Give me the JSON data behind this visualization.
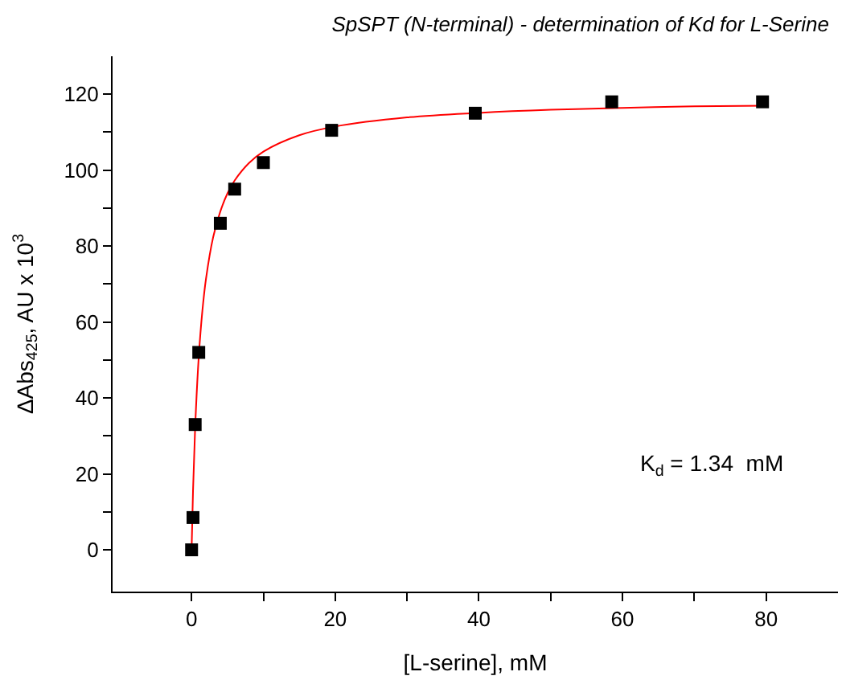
{
  "chart_data": {
    "type": "scatter",
    "title": "SpSPT (N-terminal) - determination of Kd for L-Serine",
    "xlabel": "[L-serine], mM",
    "ylabel": "ΔAbs$_{425}$, AU x 10$^{3}$",
    "series": [
      {
        "type": "line",
        "color": "#ff0000",
        "marker": "none",
        "line_style": "solid",
        "x": [
          0,
          0.2,
          0.5,
          1,
          1.5,
          2,
          3,
          4,
          5,
          6,
          8,
          10,
          15,
          20,
          30,
          40,
          50,
          60,
          70,
          80
        ],
        "values": [
          0,
          15.5,
          32.4,
          50.9,
          62.9,
          71.3,
          82.3,
          89.1,
          93.9,
          97.3,
          101.9,
          104.9,
          109.2,
          111.5,
          113.9,
          115.1,
          115.9,
          116.4,
          116.8,
          117.0
        ]
      },
      {
        "color": "#000000",
        "marker": "square",
        "x": [
          0,
          0.2,
          0.5,
          1,
          4,
          6,
          10,
          19.5,
          39.5,
          58.5,
          79.5
        ],
        "values": [
          0,
          8.5,
          33,
          52,
          86,
          95,
          102,
          110.5,
          115,
          118,
          118
        ]
      }
    ],
    "xlim": [
      -11,
      90
    ],
    "ylim": [
      -11,
      130
    ],
    "xticks": [
      0,
      {
        "value": 10,
        "label": null
      },
      20,
      {
        "value": 30,
        "label": null
      },
      40,
      {
        "value": 50,
        "label": null
      },
      60,
      {
        "value": 70,
        "label": null
      },
      80
    ],
    "yticks": [
      0,
      {
        "value": 10,
        "label": null
      },
      20,
      {
        "value": 30,
        "label": null
      },
      40,
      {
        "value": 50,
        "label": null
      },
      60,
      {
        "value": 70,
        "label": null
      },
      80,
      {
        "value": 90,
        "label": null
      },
      100,
      {
        "value": 110,
        "label": null
      },
      120
    ],
    "annotations": [
      "K$_{d}$ = 1.34  mM"
    ]
  }
}
